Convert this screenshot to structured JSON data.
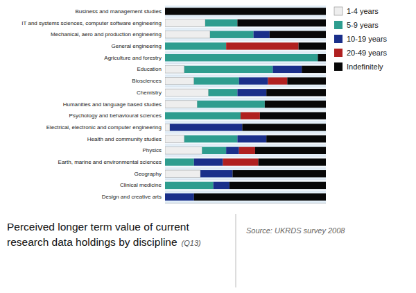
{
  "chart_data": {
    "type": "bar",
    "orientation": "horizontal",
    "stacked": true,
    "title": "Perceived longer term value of current\nresearch data holdings by discipline",
    "subtitle": "(Q13)",
    "annotations": [
      "Source: UKRDS survey 2008"
    ],
    "categories": [
      "Business and management studies",
      "IT and systems sciences, computer software engineering",
      "Mechanical, aero and production engineering",
      "General engineering",
      "Agriculture and forestry",
      "Education",
      "Biosciences",
      "Chemistry",
      "Humanities and language based studies",
      "Psychology and behavioural sciences",
      "Electrical, electronic and computer engineering",
      "Health and community studies",
      "Physics",
      "Earth, marine and environmental sciences",
      "Geography",
      "Clinical medicine",
      "Design and creative arts"
    ],
    "series": [
      {
        "name": "1-4 years",
        "color": "#eeeeee",
        "values": [
          0,
          25,
          28,
          0,
          0,
          12,
          18,
          27,
          20,
          0,
          3,
          12,
          23,
          0,
          22,
          0,
          0
        ]
      },
      {
        "name": "5-9 years",
        "color": "#2e9d8f",
        "values": [
          0,
          20,
          27,
          38,
          95,
          55,
          28,
          18,
          42,
          47,
          0,
          33,
          15,
          18,
          0,
          30,
          0
        ]
      },
      {
        "name": "10-19 years",
        "color": "#1a2f8a",
        "values": [
          0,
          0,
          10,
          0,
          0,
          18,
          18,
          18,
          0,
          0,
          45,
          18,
          8,
          18,
          20,
          10,
          18
        ]
      },
      {
        "name": "20-49 years",
        "color": "#b02020",
        "values": [
          0,
          0,
          0,
          45,
          0,
          0,
          12,
          0,
          0,
          12,
          0,
          0,
          10,
          22,
          0,
          0,
          0
        ]
      },
      {
        "name": "Indefinitely",
        "color": "#080808",
        "values": [
          100,
          55,
          35,
          17,
          5,
          15,
          24,
          37,
          38,
          41,
          52,
          37,
          44,
          42,
          58,
          60,
          82
        ]
      }
    ],
    "xlim": [
      0,
      100
    ],
    "tick_labels": "y",
    "grid": false,
    "legend": "right"
  }
}
